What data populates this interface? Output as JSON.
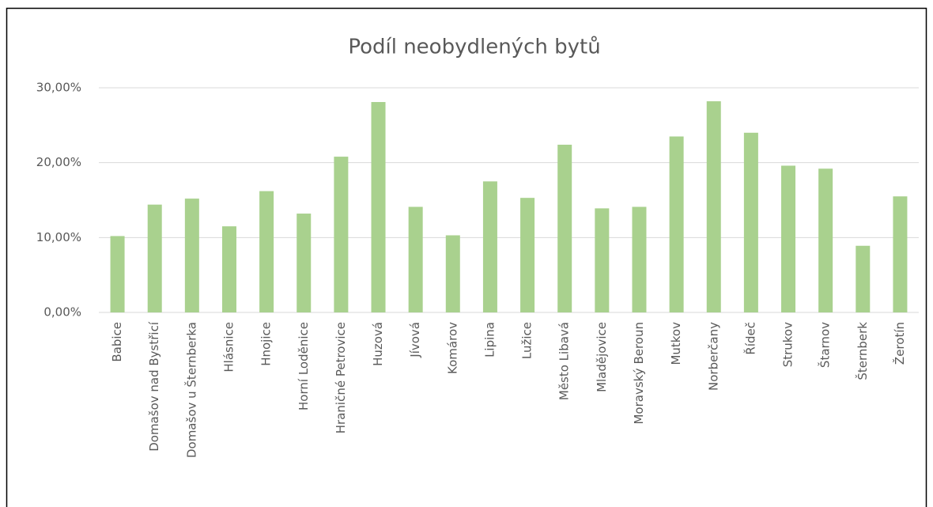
{
  "chart_data": {
    "type": "bar",
    "title": "Podíl neobydlených bytů",
    "categories": [
      "Babice",
      "Domašov nad Bystřicí",
      "Domašov u Šternberka",
      "Hlásnice",
      "Hnojice",
      "Horní Loděnice",
      "Hraničné Petrovice",
      "Huzová",
      "Jívová",
      "Komárov",
      "Lipina",
      "Lužice",
      "Město Libavá",
      "Mladějovice",
      "Moravský Beroun",
      "Mutkov",
      "Norberčany",
      "Řídeč",
      "Strukov",
      "Štarnov",
      "Šternberk",
      "Žerotín"
    ],
    "values": [
      10.2,
      14.4,
      15.2,
      11.5,
      16.2,
      13.2,
      20.8,
      28.1,
      14.1,
      10.3,
      17.5,
      15.3,
      22.4,
      13.9,
      14.1,
      23.5,
      28.2,
      24.0,
      19.6,
      19.2,
      8.9,
      15.5
    ],
    "color": "#a9d18e",
    "ylim": [
      0,
      30
    ],
    "yticks": [
      {
        "value": 0,
        "label": "0,00%"
      },
      {
        "value": 10,
        "label": "10,00%"
      },
      {
        "value": 20,
        "label": "20,00%"
      },
      {
        "value": 30,
        "label": "30,00%"
      }
    ],
    "grid": true
  }
}
